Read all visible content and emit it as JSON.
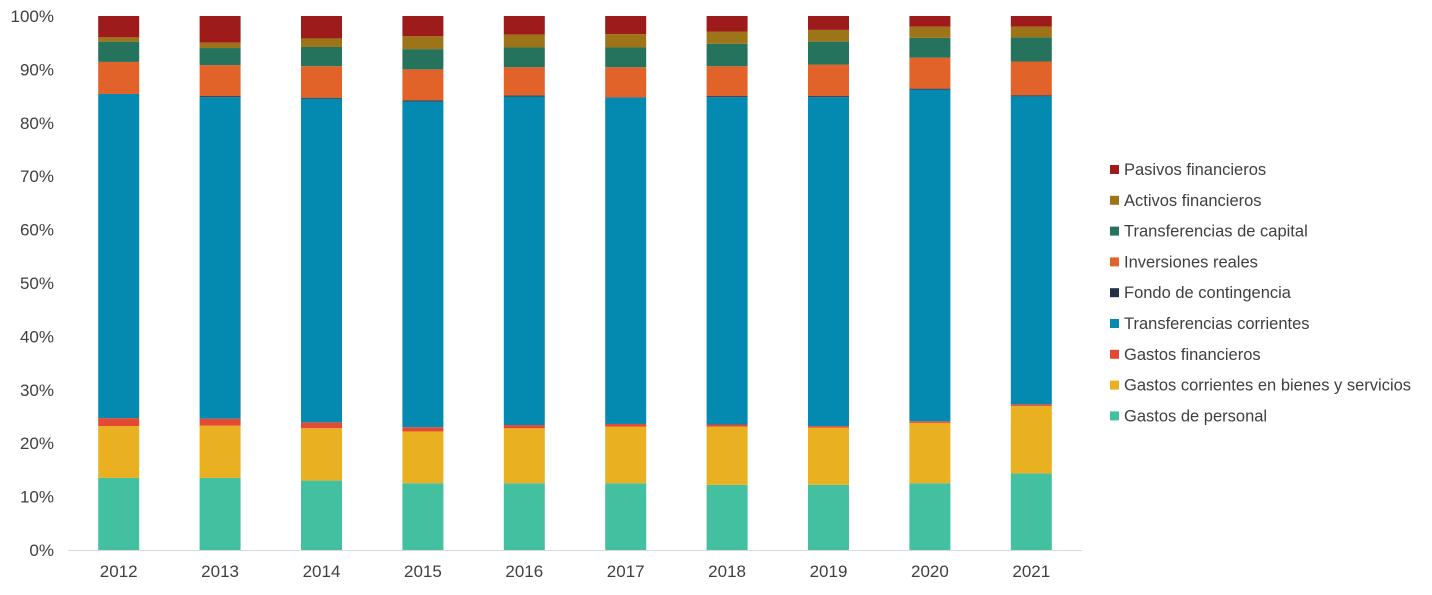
{
  "chart_data": {
    "type": "bar",
    "stacked": true,
    "percent": true,
    "categories": [
      "2012",
      "2013",
      "2014",
      "2015",
      "2016",
      "2017",
      "2018",
      "2019",
      "2020",
      "2021"
    ],
    "ylim": [
      0,
      100
    ],
    "yticks": [
      "0%",
      "10%",
      "20%",
      "30%",
      "40%",
      "50%",
      "60%",
      "70%",
      "80%",
      "90%",
      "100%"
    ],
    "grid": false,
    "legend_position": "right",
    "series": [
      {
        "name": "Gastos de personal",
        "color": "#43C0A0",
        "values": [
          13.5,
          13.5,
          13.0,
          12.5,
          12.5,
          12.5,
          12.2,
          12.2,
          12.5,
          14.3
        ]
      },
      {
        "name": "Gastos corrientes en bienes y servicios",
        "color": "#E9B121",
        "values": [
          9.7,
          9.8,
          9.8,
          9.7,
          10.3,
          10.6,
          10.9,
          10.7,
          11.3,
          12.6
        ]
      },
      {
        "name": "Gastos financieros",
        "color": "#E34A33",
        "values": [
          1.5,
          1.3,
          1.1,
          0.8,
          0.6,
          0.5,
          0.4,
          0.3,
          0.3,
          0.3
        ]
      },
      {
        "name": "Transferencias corrientes",
        "color": "#0489B1",
        "values": [
          60.7,
          60.2,
          60.6,
          61.0,
          61.5,
          61.1,
          61.3,
          61.6,
          62.1,
          57.5
        ]
      },
      {
        "name": "Fondo de contingencia",
        "color": "#1F3147",
        "values": [
          0.0,
          0.2,
          0.2,
          0.2,
          0.2,
          0.1,
          0.2,
          0.2,
          0.2,
          0.2
        ]
      },
      {
        "name": "Inversiones reales",
        "color": "#E2632A",
        "values": [
          6.0,
          5.8,
          5.9,
          5.8,
          5.3,
          5.6,
          5.6,
          5.9,
          5.8,
          6.3
        ]
      },
      {
        "name": "Transferencias de capital",
        "color": "#25735D",
        "values": [
          3.8,
          3.2,
          3.6,
          3.8,
          3.7,
          3.7,
          4.2,
          4.3,
          3.7,
          4.5
        ]
      },
      {
        "name": "Activos financieros",
        "color": "#9E7418",
        "values": [
          0.8,
          1.0,
          1.6,
          2.4,
          2.4,
          2.5,
          2.3,
          2.2,
          2.1,
          2.0
        ]
      },
      {
        "name": "Pasivos financieros",
        "color": "#9E1B1B",
        "values": [
          4.0,
          5.0,
          4.2,
          3.8,
          3.5,
          3.4,
          2.9,
          2.6,
          2.0,
          2.0
        ]
      }
    ]
  }
}
